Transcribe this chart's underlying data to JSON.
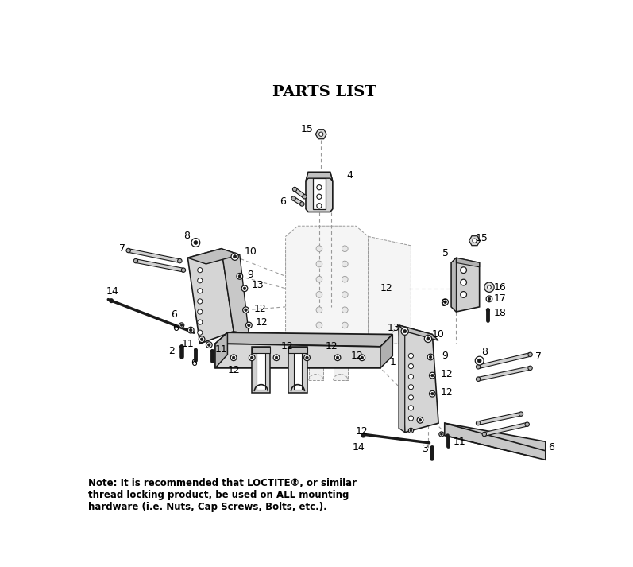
{
  "title": "PARTS LIST",
  "title_fontsize": 14,
  "background_color": "#ffffff",
  "note_text": "Note: It is recommended that LOCTITE®, or similar\nthread locking product, be used on ALL mounting\nhardware (i.e. Nuts, Cap Screws, Bolts, etc.).",
  "lc": "#1a1a1a",
  "gc": "#999999"
}
